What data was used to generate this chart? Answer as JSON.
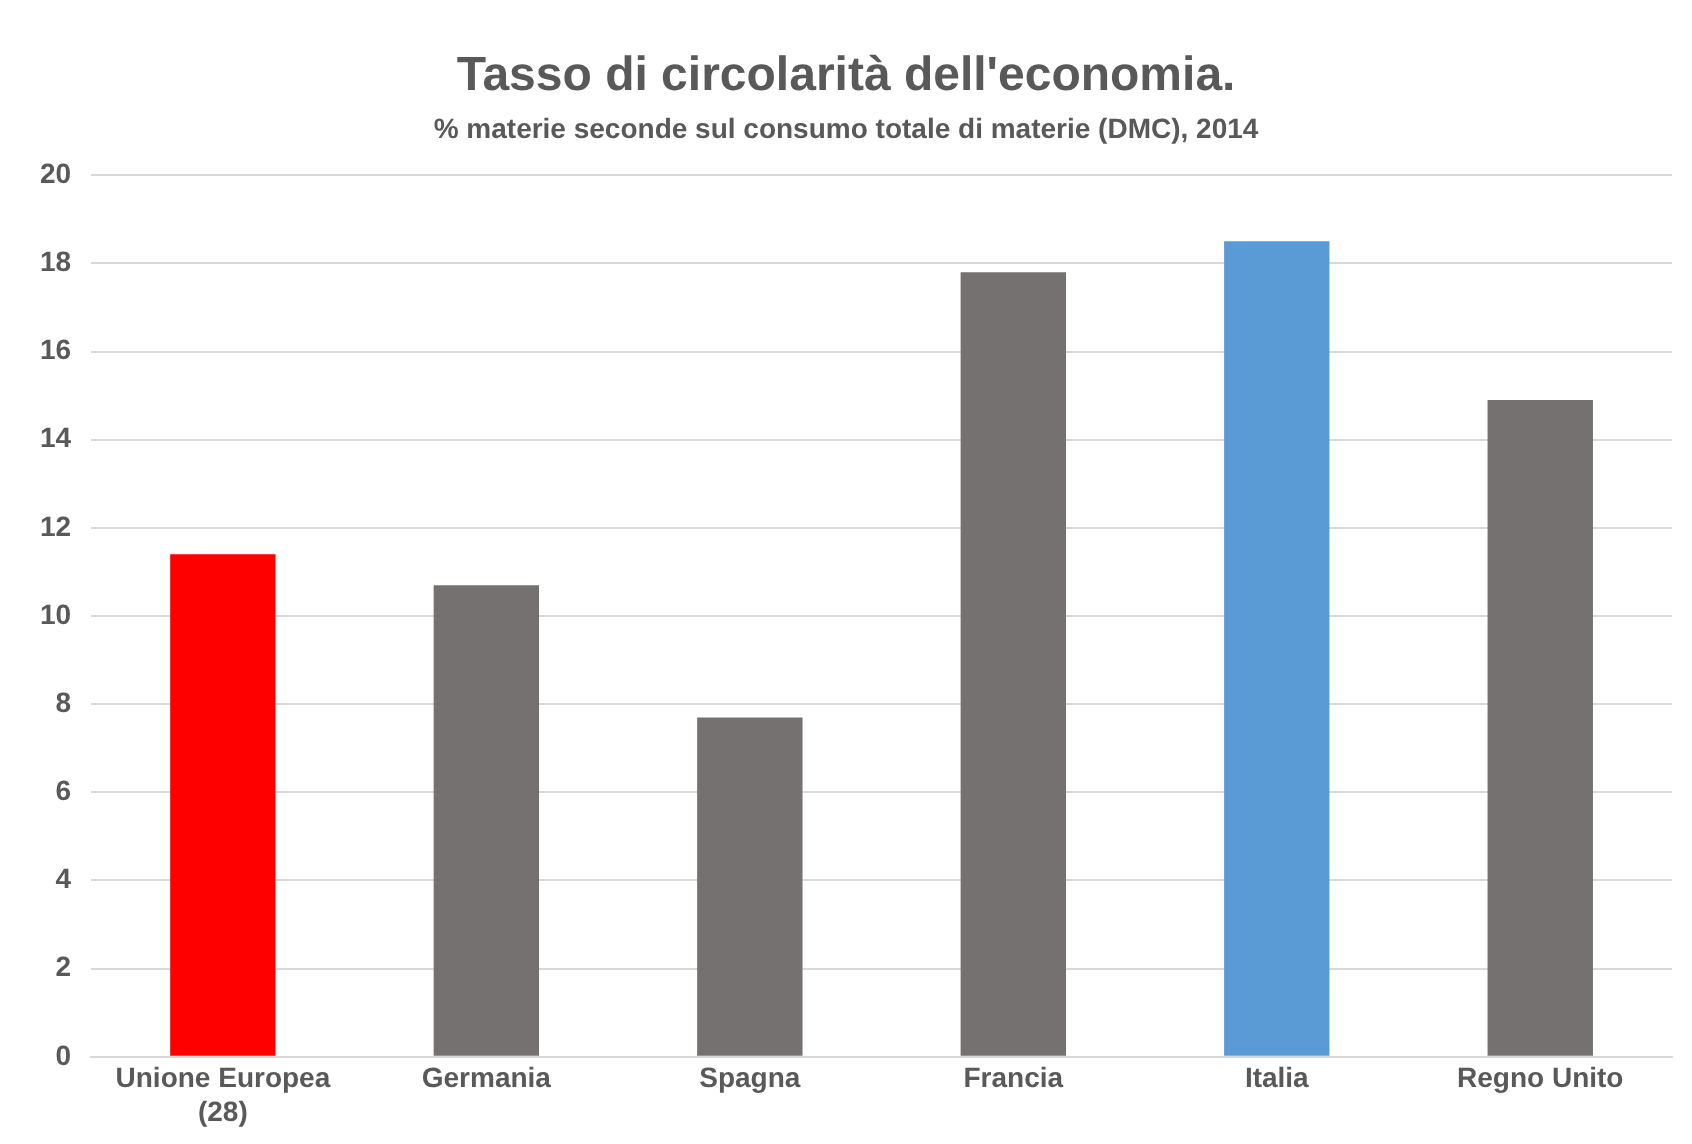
{
  "chart_data": {
    "type": "bar",
    "title": "Tasso di circolarità dell'economia.",
    "subtitle": "% materie seconde sul consumo totale di materie (DMC), 2014",
    "categories": [
      "Unione Europea (28)",
      "Germania",
      "Spagna",
      "Francia",
      "Italia",
      "Regno Unito"
    ],
    "values": [
      11.4,
      10.7,
      7.7,
      17.8,
      18.5,
      14.9
    ],
    "colors": [
      "#ff0000",
      "#767171",
      "#767171",
      "#767171",
      "#5b9bd5",
      "#767171"
    ],
    "ylim": [
      0,
      20
    ],
    "yticks": [
      0,
      2,
      4,
      6,
      8,
      10,
      12,
      14,
      16,
      18,
      20
    ],
    "grid": "y",
    "legend": false
  }
}
